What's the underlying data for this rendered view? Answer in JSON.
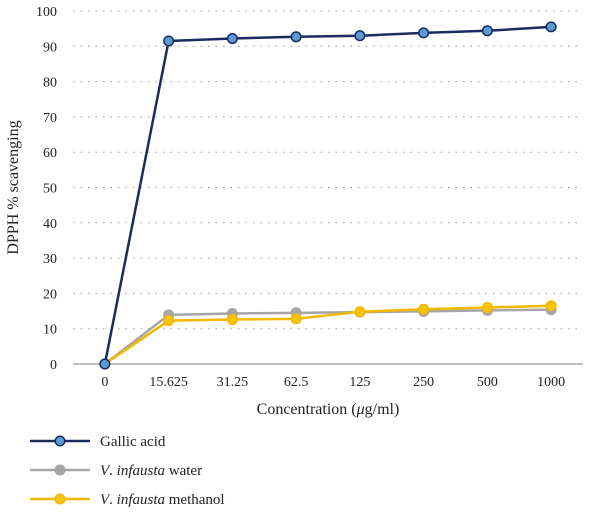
{
  "chart_data": {
    "type": "line",
    "categories": [
      "0",
      "15.625",
      "31.25",
      "62.5",
      "125",
      "250",
      "500",
      "1000"
    ],
    "xlabel_parts": [
      "Concentration (",
      "μ",
      "g/ml)"
    ],
    "ylabel": "DPPH % scavenging",
    "ylim": [
      0,
      100
    ],
    "yticks": [
      0,
      10,
      20,
      30,
      40,
      50,
      60,
      70,
      80,
      90,
      100
    ],
    "grid": "horizontal dotted",
    "legend_placement": "bottom-left",
    "series": [
      {
        "name": "Gallic acid",
        "legend_parts": [
          {
            "text": "Gallic acid",
            "italic": false
          }
        ],
        "color": "#1a2b5f",
        "marker_fill": "#5b9bd5",
        "values": [
          0,
          91.5,
          92.2,
          92.7,
          93.0,
          93.8,
          94.4,
          95.5
        ]
      },
      {
        "name": "V. infausta water",
        "legend_parts": [
          {
            "text": "V",
            "italic": true
          },
          {
            "text": ". ",
            "italic": false
          },
          {
            "text": "infausta",
            "italic": true
          },
          {
            "text": " water",
            "italic": false
          }
        ],
        "color": "#a6a6a6",
        "marker_fill": "#a6a6a6",
        "values": [
          0,
          13.9,
          14.3,
          14.5,
          14.7,
          14.9,
          15.2,
          15.4
        ]
      },
      {
        "name": "V. infausta methanol",
        "legend_parts": [
          {
            "text": "V",
            "italic": true
          },
          {
            "text": ". ",
            "italic": false
          },
          {
            "text": "infausta",
            "italic": true
          },
          {
            "text": " methanol",
            "italic": false
          }
        ],
        "color": "#f5b800",
        "marker_fill": "#f5c400",
        "values": [
          0,
          12.3,
          12.6,
          12.8,
          14.8,
          15.5,
          16.0,
          16.5
        ]
      }
    ]
  }
}
